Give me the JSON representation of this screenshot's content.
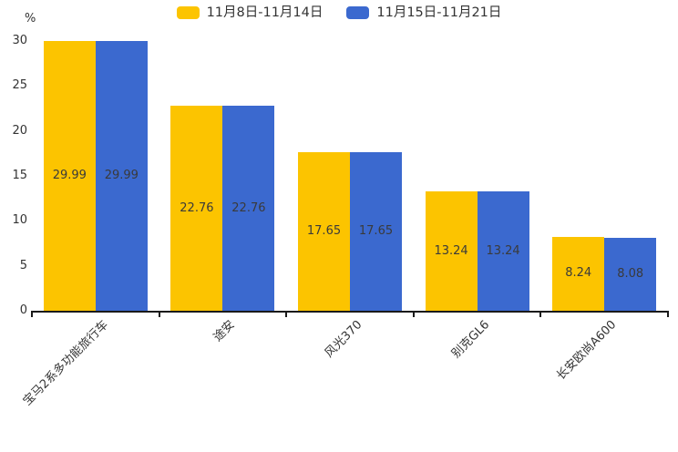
{
  "legend": {
    "items": [
      {
        "label": "11月8日-11月14日",
        "color": "#FCC400"
      },
      {
        "label": "11月15日-11月21日",
        "color": "#3B69CF"
      }
    ]
  },
  "axis": {
    "unit_label": "%"
  },
  "chart_data": {
    "type": "bar",
    "title": "",
    "categories": [
      "宝马2系多功能旅行车",
      "途安",
      "风光370",
      "别克GL6",
      "长安欧尚A600"
    ],
    "series": [
      {
        "name": "11月8日-11月14日",
        "color": "#FCC400",
        "values": [
          29.99,
          22.76,
          17.65,
          13.24,
          8.24
        ]
      },
      {
        "name": "11月15日-11月21日",
        "color": "#3B69CF",
        "values": [
          29.99,
          22.76,
          17.65,
          13.24,
          8.08
        ]
      }
    ],
    "xlabel": "",
    "ylabel": "%",
    "ylim": [
      0,
      30
    ],
    "y_ticks": [
      0,
      5,
      10,
      15,
      20,
      25,
      30
    ],
    "grid": false,
    "legend_position": "top-center",
    "value_labels": "inside-center",
    "value_label_decimals": 2,
    "x_label_rotation": 45,
    "colors": {
      "value_label": "#3a3a3a",
      "tick_label": "#333333",
      "axis": "#1a1a1a",
      "background": "#ffffff"
    }
  }
}
